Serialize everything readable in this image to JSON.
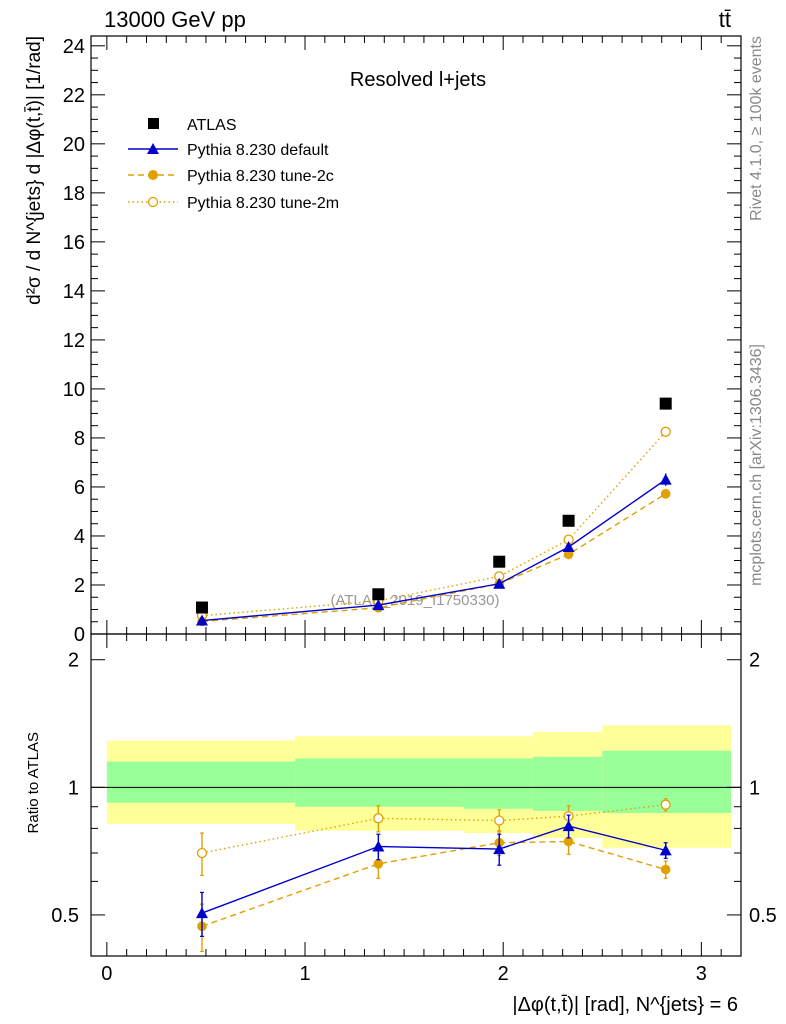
{
  "header": {
    "energy_label": "13000 GeV pp",
    "process_label": "tt̄"
  },
  "side_text": {
    "rivet": "Rivet 4.1.0, ≥ 100k events",
    "mcplots": "mcplots.cern.ch [arXiv:1306.3436]"
  },
  "chart_data": [
    {
      "panel": "main",
      "type": "line",
      "title": "Resolved l+jets",
      "watermark": "(ATLAS_2019_I1750330)",
      "xlabel": "|Δφ(t,t̄)| [rad], N^{jets} = 6",
      "ylabel": "d²σ / d N^{jets} d |Δφ(t,t̄)| [1/rad]",
      "xlim": [
        -0.08,
        3.2
      ],
      "ylim": [
        0,
        24.4
      ],
      "x_ticks": [
        0,
        1,
        2,
        3
      ],
      "y_ticks": [
        0,
        2,
        4,
        6,
        8,
        10,
        12,
        14,
        16,
        18,
        20,
        22,
        24
      ],
      "x": [
        0.48,
        1.37,
        1.98,
        2.33,
        2.82
      ],
      "legend_position": "top-left",
      "series": [
        {
          "name": "ATLAS",
          "style": "data",
          "color": "#000000",
          "marker": "square",
          "values": [
            1.08,
            1.62,
            2.95,
            4.62,
            9.4
          ]
        },
        {
          "name": "Pythia 8.230 default",
          "style": "solid",
          "color": "#0000cc",
          "marker": "triangle",
          "values": [
            0.55,
            1.18,
            2.05,
            3.55,
            6.3
          ],
          "errors": [
            0.05,
            0.08,
            0.12,
            0.2,
            0.25
          ]
        },
        {
          "name": "Pythia 8.230 tune-2c",
          "style": "dashed",
          "color": "#e0a000",
          "marker": "filled-circle",
          "values": [
            0.51,
            1.07,
            2.05,
            3.25,
            5.72
          ],
          "errors": [
            0.05,
            0.08,
            0.1,
            0.2,
            0.2
          ]
        },
        {
          "name": "Pythia 8.230 tune-2m",
          "style": "dotted",
          "color": "#e0a000",
          "marker": "open-circle",
          "values": [
            0.75,
            1.35,
            2.35,
            3.85,
            8.25
          ],
          "errors": [
            0.08,
            0.1,
            0.12,
            0.2,
            0.2
          ]
        }
      ]
    },
    {
      "panel": "ratio",
      "type": "line",
      "ylabel": "Ratio to ATLAS",
      "ylim": [
        0.4,
        2.3
      ],
      "y_ticks": [
        0.5,
        1,
        2
      ],
      "x": [
        0.48,
        1.37,
        1.98,
        2.33,
        2.82
      ],
      "reference_line": 1,
      "bands": {
        "edges": [
          0,
          0.95,
          1.8,
          2.15,
          2.5,
          3.15
        ],
        "total_low": [
          0.82,
          0.79,
          0.78,
          0.76,
          0.72
        ],
        "total_high": [
          1.29,
          1.32,
          1.32,
          1.35,
          1.4
        ],
        "stat_low": [
          0.92,
          0.9,
          0.89,
          0.88,
          0.87
        ],
        "stat_high": [
          1.15,
          1.17,
          1.17,
          1.18,
          1.22
        ],
        "total_color": "#ffff99",
        "stat_color": "#99ff99"
      },
      "series": [
        {
          "name": "Pythia 8.230 default",
          "color": "#0000cc",
          "marker": "triangle",
          "values": [
            0.505,
            0.725,
            0.715,
            0.81,
            0.71
          ],
          "errors": [
            0.06,
            0.05,
            0.06,
            0.05,
            0.03
          ]
        },
        {
          "name": "Pythia 8.230 tune-2c",
          "color": "#e0a000",
          "marker": "filled-circle",
          "values": [
            0.47,
            0.66,
            0.74,
            0.745,
            0.64
          ],
          "errors": [
            0.06,
            0.05,
            0.05,
            0.05,
            0.03
          ]
        },
        {
          "name": "Pythia 8.230 tune-2m",
          "color": "#e0a000",
          "marker": "open-circle",
          "values": [
            0.7,
            0.845,
            0.835,
            0.855,
            0.91
          ],
          "errors": [
            0.08,
            0.06,
            0.05,
            0.05,
            0.03
          ]
        }
      ]
    }
  ]
}
